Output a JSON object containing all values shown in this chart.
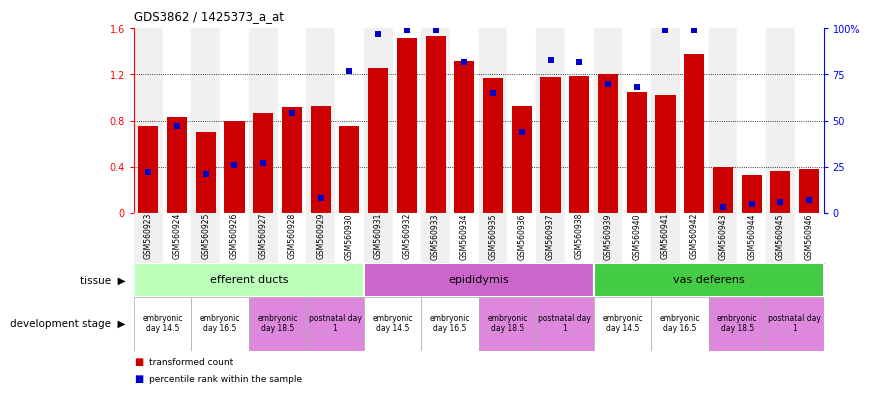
{
  "title": "GDS3862 / 1425373_a_at",
  "samples": [
    "GSM560923",
    "GSM560924",
    "GSM560925",
    "GSM560926",
    "GSM560927",
    "GSM560928",
    "GSM560929",
    "GSM560930",
    "GSM560931",
    "GSM560932",
    "GSM560933",
    "GSM560934",
    "GSM560935",
    "GSM560936",
    "GSM560937",
    "GSM560938",
    "GSM560939",
    "GSM560940",
    "GSM560941",
    "GSM560942",
    "GSM560943",
    "GSM560944",
    "GSM560945",
    "GSM560946"
  ],
  "bar_heights": [
    0.75,
    0.83,
    0.7,
    0.8,
    0.87,
    0.92,
    0.93,
    0.75,
    1.26,
    1.52,
    1.53,
    1.32,
    1.17,
    0.93,
    1.18,
    1.19,
    1.2,
    1.05,
    1.02,
    1.38,
    0.4,
    0.33,
    0.36,
    0.38
  ],
  "percentile_ranks": [
    22,
    47,
    21,
    26,
    27,
    54,
    8,
    77,
    97,
    99,
    99,
    82,
    65,
    44,
    83,
    82,
    70,
    68,
    99,
    99,
    3,
    5,
    6,
    7
  ],
  "bar_color": "#cc0000",
  "percentile_color": "#0000cc",
  "ylim_left": [
    0,
    1.6
  ],
  "ylim_right": [
    0,
    100
  ],
  "yticks_left": [
    0,
    0.4,
    0.8,
    1.2,
    1.6
  ],
  "ytick_labels_left": [
    "0",
    "0.4",
    "0.8",
    "1.2",
    "1.6"
  ],
  "yticks_right": [
    0,
    25,
    50,
    75,
    100
  ],
  "ytick_labels_right": [
    "0",
    "25",
    "50",
    "75",
    "100%"
  ],
  "col_bg_even": "#f0f0f0",
  "col_bg_odd": "#ffffff",
  "tissues": [
    {
      "label": "efferent ducts",
      "start": 0,
      "end": 8,
      "color": "#bbffbb"
    },
    {
      "label": "epididymis",
      "start": 8,
      "end": 16,
      "color": "#cc66cc"
    },
    {
      "label": "vas deferens",
      "start": 16,
      "end": 24,
      "color": "#44cc44"
    }
  ],
  "dev_stages": [
    {
      "label": "embryonic\nday 14.5",
      "start": 0,
      "end": 2,
      "color": "#ffffff"
    },
    {
      "label": "embryonic\nday 16.5",
      "start": 2,
      "end": 4,
      "color": "#ffffff"
    },
    {
      "label": "embryonic\nday 18.5",
      "start": 4,
      "end": 6,
      "color": "#dd88dd"
    },
    {
      "label": "postnatal day\n1",
      "start": 6,
      "end": 8,
      "color": "#dd88dd"
    },
    {
      "label": "embryonic\nday 14.5",
      "start": 8,
      "end": 10,
      "color": "#ffffff"
    },
    {
      "label": "embryonic\nday 16.5",
      "start": 10,
      "end": 12,
      "color": "#ffffff"
    },
    {
      "label": "embryonic\nday 18.5",
      "start": 12,
      "end": 14,
      "color": "#dd88dd"
    },
    {
      "label": "postnatal day\n1",
      "start": 14,
      "end": 16,
      "color": "#dd88dd"
    },
    {
      "label": "embryonic\nday 14.5",
      "start": 16,
      "end": 18,
      "color": "#ffffff"
    },
    {
      "label": "embryonic\nday 16.5",
      "start": 18,
      "end": 20,
      "color": "#ffffff"
    },
    {
      "label": "embryonic\nday 18.5",
      "start": 20,
      "end": 22,
      "color": "#dd88dd"
    },
    {
      "label": "postnatal day\n1",
      "start": 22,
      "end": 24,
      "color": "#dd88dd"
    }
  ],
  "legend_items": [
    {
      "label": "transformed count",
      "color": "#cc0000"
    },
    {
      "label": "percentile rank within the sample",
      "color": "#0000cc"
    }
  ],
  "bg_color": "#ffffff"
}
